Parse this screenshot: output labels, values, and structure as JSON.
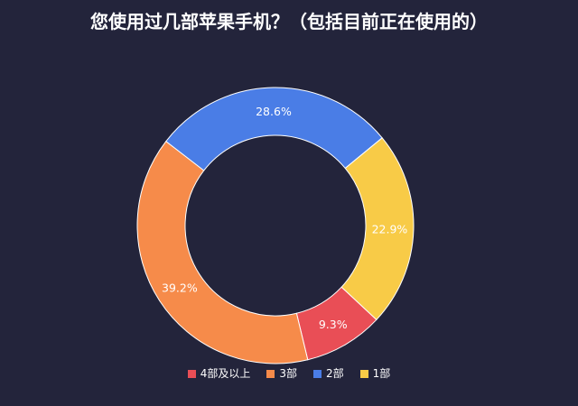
{
  "chart_data": {
    "type": "pie",
    "title": "您使用过几部苹果手机？（包括目前正在使用的）",
    "donut": true,
    "categories": [
      "4部及以上",
      "3部",
      "2部",
      "1部"
    ],
    "values": [
      9.3,
      39.2,
      28.6,
      22.9
    ],
    "labels": [
      "9.3%",
      "39.2%",
      "28.6%",
      "22.9%"
    ],
    "colors": [
      "#e94e56",
      "#f68b4a",
      "#4a7de6",
      "#f8cb47"
    ],
    "legend_position": "bottom",
    "background": "#23243b"
  }
}
